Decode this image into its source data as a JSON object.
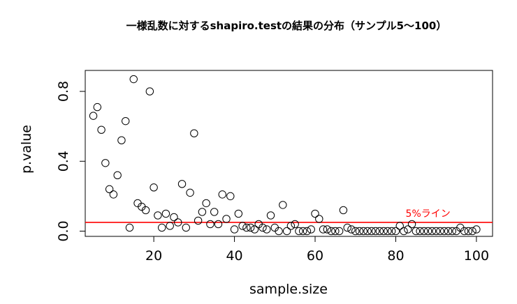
{
  "chart_data": {
    "type": "scatter",
    "title": "一様乱数に対するshapiro.testの結果の分布（サンプル5〜100）",
    "xlabel": "sample.size",
    "ylabel": "p.value",
    "xlim": [
      3,
      104
    ],
    "ylim": [
      -0.03,
      0.92
    ],
    "x_ticks": [
      20,
      40,
      60,
      80,
      100
    ],
    "y_ticks": [
      0.0,
      0.4,
      0.8
    ],
    "y_tick_labels": [
      "0.0",
      "0.4",
      "0.8"
    ],
    "grid": false,
    "reference_line": {
      "y": 0.05,
      "color": "#ff0000",
      "label": "5%ライン"
    },
    "x": [
      5,
      6,
      7,
      8,
      9,
      10,
      11,
      12,
      13,
      14,
      15,
      16,
      17,
      18,
      19,
      20,
      21,
      22,
      23,
      24,
      25,
      26,
      27,
      28,
      29,
      30,
      31,
      32,
      33,
      34,
      35,
      36,
      37,
      38,
      39,
      40,
      41,
      42,
      43,
      44,
      45,
      46,
      47,
      48,
      49,
      50,
      51,
      52,
      53,
      54,
      55,
      56,
      57,
      58,
      59,
      60,
      61,
      62,
      63,
      64,
      65,
      66,
      67,
      68,
      69,
      70,
      71,
      72,
      73,
      74,
      75,
      76,
      77,
      78,
      79,
      80,
      81,
      82,
      83,
      84,
      85,
      86,
      87,
      88,
      89,
      90,
      91,
      92,
      93,
      94,
      95,
      96,
      97,
      98,
      99,
      100
    ],
    "y": [
      0.66,
      0.71,
      0.58,
      0.39,
      0.24,
      0.21,
      0.32,
      0.52,
      0.63,
      0.02,
      0.87,
      0.16,
      0.14,
      0.12,
      0.8,
      0.25,
      0.09,
      0.02,
      0.1,
      0.03,
      0.08,
      0.05,
      0.27,
      0.02,
      0.22,
      0.56,
      0.06,
      0.11,
      0.16,
      0.04,
      0.11,
      0.04,
      0.21,
      0.07,
      0.2,
      0.01,
      0.1,
      0.03,
      0.02,
      0.02,
      0.01,
      0.04,
      0.02,
      0.01,
      0.09,
      0.02,
      0.0,
      0.15,
      0.0,
      0.03,
      0.04,
      0.0,
      0.0,
      0.0,
      0.01,
      0.1,
      0.07,
      0.01,
      0.01,
      0.0,
      0.0,
      0.0,
      0.12,
      0.02,
      0.01,
      0.0,
      0.0,
      0.0,
      0.0,
      0.0,
      0.0,
      0.0,
      0.0,
      0.0,
      0.0,
      0.0,
      0.03,
      0.0,
      0.01,
      0.04,
      0.0,
      0.0,
      0.0,
      0.0,
      0.0,
      0.0,
      0.0,
      0.0,
      0.0,
      0.0,
      0.0,
      0.02,
      0.0,
      0.0,
      0.0,
      0.01
    ],
    "marker": "open-circle",
    "marker_color": "#000000"
  }
}
